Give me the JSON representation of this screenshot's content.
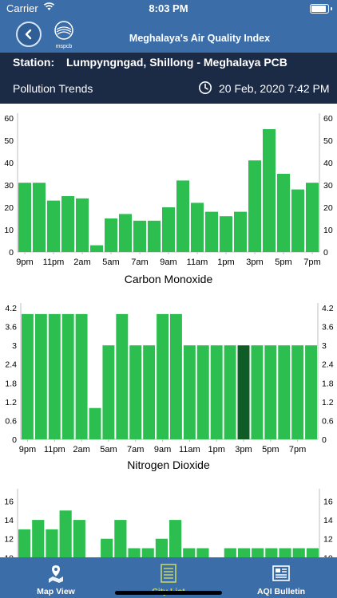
{
  "status_bar": {
    "carrier": "Carrier",
    "time": "8:03 PM"
  },
  "header": {
    "title": "Meghalaya's Air Quality Index",
    "logo_text": "mspcb"
  },
  "station": {
    "label": "Station:",
    "name": "Lumpyngngad, Shillong - Meghalaya PCB"
  },
  "trend": {
    "label": "Pollution Trends",
    "datetime": "20 Feb, 2020 7:42 PM"
  },
  "colors": {
    "bar": "#2cbf4f",
    "bar_highlight": "#0f5c26",
    "header": "#3b6ea8",
    "station_bg": "#1b2a45"
  },
  "tabs": [
    {
      "label": "Map View",
      "icon": "map-pin-icon",
      "active": false
    },
    {
      "label": "City List",
      "icon": "list-icon",
      "active": true
    },
    {
      "label": "AQI Bulletin",
      "icon": "newspaper-icon",
      "active": false
    }
  ],
  "chart_data": [
    {
      "type": "bar",
      "title": "Carbon Monoxide",
      "x_tick_labels": [
        "9pm",
        "11pm",
        "2am",
        "5am",
        "7am",
        "9am",
        "11am",
        "1pm",
        "3pm",
        "5pm",
        "7pm"
      ],
      "y_ticks": [
        "0",
        "10",
        "20",
        "30",
        "40",
        "50",
        "60"
      ],
      "ylim": [
        0,
        60
      ],
      "values": [
        31,
        31,
        23,
        25,
        24,
        3,
        15,
        17,
        14,
        14,
        20,
        32,
        22,
        18,
        16,
        18,
        41,
        55,
        35,
        28,
        31
      ],
      "highlight_index": null,
      "right_axis": true
    },
    {
      "type": "bar",
      "title": "Nitrogen Dioxide",
      "x_tick_labels": [
        "9pm",
        "11pm",
        "2am",
        "5am",
        "7am",
        "9am",
        "11am",
        "1pm",
        "3pm",
        "5pm",
        "7pm"
      ],
      "y_ticks": [
        "0",
        "0.6",
        "1.2",
        "1.8",
        "2.4",
        "3",
        "3.6",
        "4.2"
      ],
      "ylim": [
        0,
        4.2
      ],
      "values": [
        4,
        4,
        4,
        4,
        4,
        1,
        3,
        4,
        3,
        3,
        4,
        4,
        3,
        3,
        3,
        3,
        3,
        3,
        3,
        3,
        3,
        3
      ],
      "highlight_index": 16,
      "right_axis": true
    },
    {
      "type": "bar",
      "title": "",
      "x_tick_labels": [],
      "y_ticks": [
        "10",
        "12",
        "14",
        "16"
      ],
      "ylim": [
        8,
        16.8
      ],
      "values": [
        13,
        14,
        13,
        15,
        14,
        0,
        12,
        14,
        11,
        11,
        12,
        14,
        11,
        11,
        10,
        11,
        11,
        11,
        11,
        11,
        11,
        11
      ],
      "highlight_index": null,
      "right_axis": true
    }
  ]
}
